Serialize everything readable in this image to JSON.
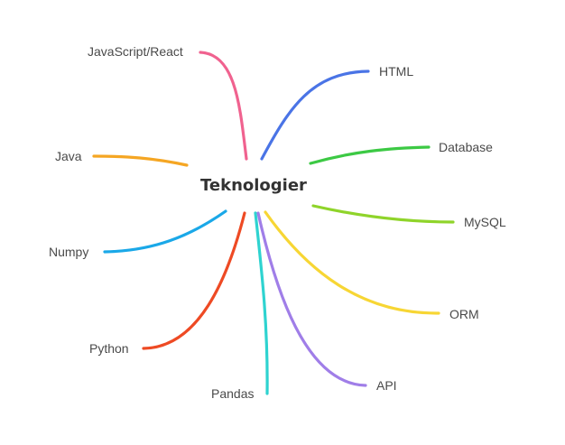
{
  "center": {
    "label": "Teknologier"
  },
  "branches": [
    {
      "id": "javascript",
      "label": "JavaScript/React",
      "color": "#f0628f"
    },
    {
      "id": "html",
      "label": "HTML",
      "color": "#4a74e6"
    },
    {
      "id": "java",
      "label": "Java",
      "color": "#f5a623"
    },
    {
      "id": "database",
      "label": "Database",
      "color": "#3cc944"
    },
    {
      "id": "mysql",
      "label": "MySQL",
      "color": "#8fd42a"
    },
    {
      "id": "numpy",
      "label": "Numpy",
      "color": "#1aa8e8"
    },
    {
      "id": "orm",
      "label": "ORM",
      "color": "#f7d634"
    },
    {
      "id": "python",
      "label": "Python",
      "color": "#ee4a24"
    },
    {
      "id": "pandas",
      "label": "Pandas",
      "color": "#2ed3d0"
    },
    {
      "id": "api",
      "label": "API",
      "color": "#a07ee8"
    }
  ]
}
